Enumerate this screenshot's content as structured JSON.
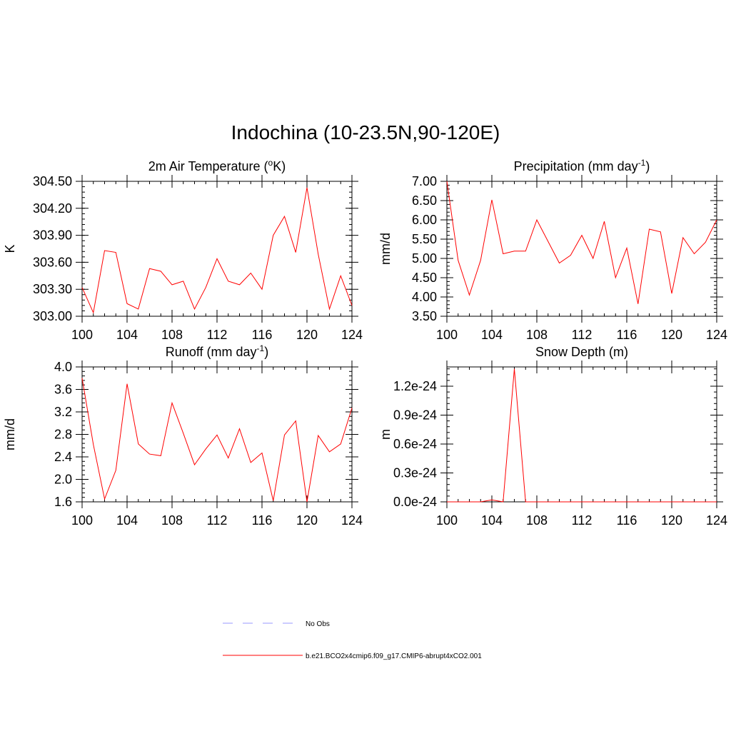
{
  "title": "Indochina (10-23.5N,90-120E)",
  "legend": [
    {
      "label": "No Obs",
      "color": "#9999ff",
      "style": "dashed"
    },
    {
      "label": "b.e21.BCO2x4cmip6.f09_g17.CMIP6-abrupt4xCO2.001",
      "color": "#ff0000",
      "style": "solid"
    }
  ],
  "chart_data": [
    {
      "type": "line",
      "title": "2m Air Temperature (°K)",
      "title_base": "2m Air Temperature (",
      "title_sup": "o",
      "title_tail": "K)",
      "ylabel": "K",
      "xlim": [
        100,
        124
      ],
      "ylim": [
        303.0,
        304.5
      ],
      "xticks": [
        100,
        104,
        108,
        112,
        116,
        120,
        124
      ],
      "yticks": [
        "303.00",
        "303.30",
        "303.60",
        "303.90",
        "304.20",
        "304.50"
      ],
      "x": [
        100,
        101,
        102,
        103,
        104,
        105,
        106,
        107,
        108,
        109,
        110,
        111,
        112,
        113,
        114,
        115,
        116,
        117,
        118,
        119,
        120,
        121,
        122,
        123,
        124
      ],
      "series": [
        {
          "name": "b.e21.BCO2x4cmip6.f09_g17.CMIP6-abrupt4xCO2.001",
          "values": [
            303.32,
            303.04,
            303.73,
            303.71,
            303.14,
            303.08,
            303.53,
            303.5,
            303.35,
            303.39,
            303.08,
            303.32,
            303.64,
            303.39,
            303.35,
            303.48,
            303.3,
            303.9,
            304.11,
            303.71,
            304.43,
            303.69,
            303.08,
            303.45,
            303.12
          ]
        }
      ]
    },
    {
      "type": "line",
      "title": "Precipitation (mm day-1)",
      "title_base": "Precipitation (mm day",
      "title_sup": "-1",
      "title_tail": ")",
      "ylabel": "mm/d",
      "xlim": [
        100,
        124
      ],
      "ylim": [
        3.5,
        7.0
      ],
      "xticks": [
        100,
        104,
        108,
        112,
        116,
        120,
        124
      ],
      "yticks": [
        "3.50",
        "4.00",
        "4.50",
        "5.00",
        "5.50",
        "6.00",
        "6.50",
        "7.00"
      ],
      "x": [
        100,
        101,
        102,
        103,
        104,
        105,
        106,
        107,
        108,
        109,
        110,
        111,
        112,
        113,
        114,
        115,
        116,
        117,
        118,
        119,
        120,
        121,
        122,
        123,
        124
      ],
      "series": [
        {
          "name": "b.e21.BCO2x4cmip6.f09_g17.CMIP6-abrupt4xCO2.001",
          "values": [
            7.0,
            4.95,
            4.05,
            4.95,
            6.52,
            5.12,
            5.19,
            5.19,
            6.0,
            5.44,
            4.88,
            5.08,
            5.6,
            5.0,
            5.96,
            4.5,
            5.27,
            3.82,
            5.76,
            5.69,
            4.09,
            5.54,
            5.12,
            5.42,
            6.0
          ]
        }
      ]
    },
    {
      "type": "line",
      "title": "Runoff (mm day-1)",
      "title_base": "Runoff (mm day",
      "title_sup": "-1",
      "title_tail": ")",
      "ylabel": "mm/d",
      "xlim": [
        100,
        124
      ],
      "ylim": [
        1.6,
        4.0
      ],
      "xticks": [
        100,
        104,
        108,
        112,
        116,
        120,
        124
      ],
      "yticks": [
        "1.6",
        "2.0",
        "2.4",
        "2.8",
        "3.2",
        "3.6",
        "4.0"
      ],
      "x": [
        100,
        101,
        102,
        103,
        104,
        105,
        106,
        107,
        108,
        109,
        110,
        111,
        112,
        113,
        114,
        115,
        116,
        117,
        118,
        119,
        120,
        121,
        122,
        123,
        124
      ],
      "series": [
        {
          "name": "b.e21.BCO2x4cmip6.f09_g17.CMIP6-abrupt4xCO2.001",
          "values": [
            3.8,
            2.62,
            1.65,
            2.16,
            3.7,
            2.63,
            2.45,
            2.42,
            3.36,
            2.82,
            2.26,
            2.54,
            2.79,
            2.38,
            2.9,
            2.3,
            2.47,
            1.62,
            2.79,
            3.04,
            1.6,
            2.78,
            2.49,
            2.63,
            3.27
          ]
        }
      ]
    },
    {
      "type": "line",
      "title": "Snow Depth (m)",
      "title_base": "Snow Depth (m)",
      "title_sup": "",
      "title_tail": "",
      "ylabel": "m",
      "xlim": [
        100,
        124
      ],
      "ylim": [
        0,
        1.4
      ],
      "xticks": [
        100,
        104,
        108,
        112,
        116,
        120,
        124
      ],
      "yticks": [
        "0.0e-24",
        "0.3e-24",
        "0.6e-24",
        "0.9e-24",
        "1.2e-24"
      ],
      "ytick_values": [
        0,
        0.3,
        0.6,
        0.9,
        1.2
      ],
      "x": [
        100,
        101,
        102,
        103,
        104,
        105,
        106,
        107,
        108,
        109,
        110,
        111,
        112,
        113,
        114,
        115,
        116,
        117,
        118,
        119,
        120,
        121,
        122,
        123,
        124
      ],
      "series": [
        {
          "name": "b.e21.BCO2x4cmip6.f09_g17.CMIP6-abrupt4xCO2.001",
          "values": [
            0,
            0,
            0,
            0,
            0.02,
            0,
            1.38,
            0,
            0,
            0,
            0,
            0,
            0,
            0,
            0,
            0,
            0,
            0,
            0,
            0,
            0,
            0,
            0,
            0,
            0
          ]
        }
      ]
    }
  ]
}
